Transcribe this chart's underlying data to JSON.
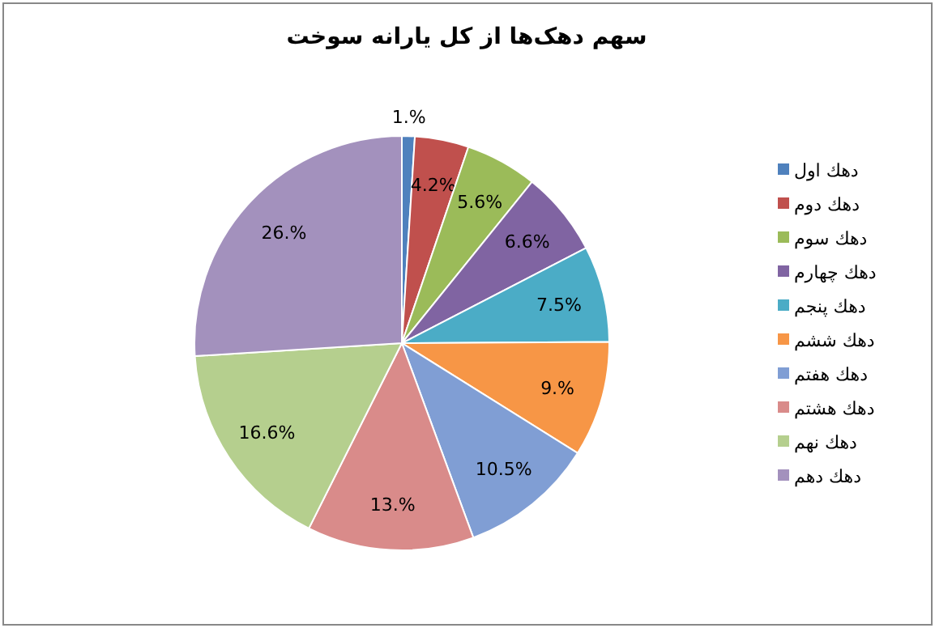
{
  "chart_data": {
    "type": "pie",
    "title": "سهم دهک‌ها از کل یارانه سوخت",
    "categories": [
      "دهك اول",
      "دهك دوم",
      "دهك سوم",
      "دهك چهارم",
      "دهك پنجم",
      "دهك ششم",
      "دهك هفتم",
      "دهك هشتم",
      "دهك نهم",
      "دهك دهم"
    ],
    "values": [
      1,
      4.2,
      5.6,
      6.6,
      7.5,
      9,
      10.5,
      13,
      16.6,
      26
    ],
    "value_labels": [
      "1.%",
      "4.2%",
      "5.6%",
      "6.6%",
      "7.5%",
      "9.%",
      "10.5%",
      "13.%",
      "16.6%",
      "26.%"
    ],
    "colors": [
      "#4f81bd",
      "#c0504d",
      "#9bbb59",
      "#8064a2",
      "#4bacc6",
      "#f79646",
      "#809ed4",
      "#d98b8a",
      "#b5cf8e",
      "#a391bd"
    ],
    "legend": "right"
  }
}
